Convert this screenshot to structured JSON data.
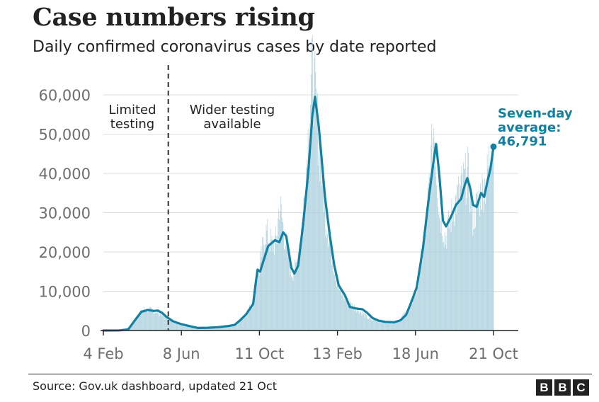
{
  "title": "Case numbers rising",
  "subtitle": "Daily confirmed coronavirus cases by date reported",
  "source": "Source: Gov.uk dashboard, updated 21 Oct",
  "logo": {
    "letters": [
      "B",
      "B",
      "C"
    ]
  },
  "annotations": {
    "limited_testing": [
      "Limited",
      "testing"
    ],
    "wider_testing": [
      "Wider testing",
      "available"
    ],
    "latest_label": [
      "Seven-day",
      "average:",
      "46,791"
    ]
  },
  "colors": {
    "line": "#1380a1",
    "bars": "#a8cedc",
    "grid": "#dcdcdc",
    "axis": "#222222",
    "tick_text": "#6e6e6e",
    "accent_text": "#1380a1"
  },
  "chart_data": {
    "type": "line",
    "title": "Case numbers rising",
    "subtitle": "Daily confirmed coronavirus cases by date reported",
    "xlabel": "",
    "ylabel": "",
    "x_ticks": [
      "4 Feb",
      "8 Jun",
      "11 Oct",
      "13 Feb",
      "18 Jun",
      "21 Oct"
    ],
    "y_ticks": [
      0,
      10000,
      20000,
      30000,
      40000,
      50000,
      60000
    ],
    "y_tick_labels": [
      "0",
      "10,000",
      "20,000",
      "30,000",
      "40,000",
      "50,000",
      "60,000"
    ],
    "ylim": [
      0,
      65000
    ],
    "xlim": [
      "2020-02-04",
      "2021-10-21"
    ],
    "grid": true,
    "testing_change_date": "2020-05-18",
    "series": [
      {
        "name": "Seven-day average",
        "style": "line",
        "points": [
          [
            "2020-02-04",
            0
          ],
          [
            "2020-03-01",
            30
          ],
          [
            "2020-03-15",
            300
          ],
          [
            "2020-03-25",
            2500
          ],
          [
            "2020-04-05",
            4800
          ],
          [
            "2020-04-15",
            5200
          ],
          [
            "2020-04-25",
            5000
          ],
          [
            "2020-05-01",
            5100
          ],
          [
            "2020-05-08",
            4500
          ],
          [
            "2020-05-15",
            3500
          ],
          [
            "2020-05-25",
            2400
          ],
          [
            "2020-06-08",
            1600
          ],
          [
            "2020-06-22",
            1100
          ],
          [
            "2020-07-05",
            650
          ],
          [
            "2020-07-20",
            700
          ],
          [
            "2020-08-05",
            850
          ],
          [
            "2020-08-20",
            1100
          ],
          [
            "2020-09-01",
            1400
          ],
          [
            "2020-09-10",
            2600
          ],
          [
            "2020-09-20",
            4200
          ],
          [
            "2020-10-01",
            6800
          ],
          [
            "2020-10-05",
            12000
          ],
          [
            "2020-10-08",
            15500
          ],
          [
            "2020-10-12",
            15000
          ],
          [
            "2020-10-18",
            18000
          ],
          [
            "2020-10-25",
            21500
          ],
          [
            "2020-11-05",
            23000
          ],
          [
            "2020-11-12",
            22500
          ],
          [
            "2020-11-18",
            25000
          ],
          [
            "2020-11-23",
            24000
          ],
          [
            "2020-12-01",
            16000
          ],
          [
            "2020-12-06",
            14500
          ],
          [
            "2020-12-12",
            16500
          ],
          [
            "2020-12-20",
            27000
          ],
          [
            "2020-12-28",
            40000
          ],
          [
            "2021-01-04",
            55000
          ],
          [
            "2021-01-08",
            59500
          ],
          [
            "2021-01-14",
            52000
          ],
          [
            "2021-01-24",
            34000
          ],
          [
            "2021-02-01",
            24000
          ],
          [
            "2021-02-08",
            16500
          ],
          [
            "2021-02-15",
            11500
          ],
          [
            "2021-02-25",
            9000
          ],
          [
            "2021-03-05",
            6000
          ],
          [
            "2021-03-15",
            5600
          ],
          [
            "2021-03-25",
            5400
          ],
          [
            "2021-04-01",
            4600
          ],
          [
            "2021-04-10",
            3200
          ],
          [
            "2021-04-20",
            2500
          ],
          [
            "2021-05-01",
            2200
          ],
          [
            "2021-05-15",
            2100
          ],
          [
            "2021-05-25",
            2600
          ],
          [
            "2021-06-03",
            4000
          ],
          [
            "2021-06-12",
            7500
          ],
          [
            "2021-06-20",
            11000
          ],
          [
            "2021-06-30",
            21000
          ],
          [
            "2021-07-08",
            32000
          ],
          [
            "2021-07-16",
            42000
          ],
          [
            "2021-07-21",
            47500
          ],
          [
            "2021-07-26",
            40000
          ],
          [
            "2021-08-01",
            28000
          ],
          [
            "2021-08-06",
            26500
          ],
          [
            "2021-08-14",
            29000
          ],
          [
            "2021-08-22",
            32000
          ],
          [
            "2021-08-30",
            33500
          ],
          [
            "2021-09-05",
            37000
          ],
          [
            "2021-09-09",
            38800
          ],
          [
            "2021-09-14",
            36000
          ],
          [
            "2021-09-18",
            32000
          ],
          [
            "2021-09-24",
            31500
          ],
          [
            "2021-10-01",
            35000
          ],
          [
            "2021-10-06",
            34000
          ],
          [
            "2021-10-12",
            38500
          ],
          [
            "2021-10-16",
            41000
          ],
          [
            "2021-10-21",
            46791
          ]
        ]
      },
      {
        "name": "Daily confirmed cases",
        "style": "bars",
        "points": [
          [
            "2020-02-04",
            0
          ],
          [
            "2020-03-10",
            150
          ],
          [
            "2020-03-20",
            1500
          ],
          [
            "2020-04-01",
            4500
          ],
          [
            "2020-04-10",
            5500
          ],
          [
            "2020-04-24",
            5200
          ],
          [
            "2020-05-08",
            4300
          ],
          [
            "2020-05-20",
            3000
          ],
          [
            "2020-06-08",
            1400
          ],
          [
            "2020-07-05",
            600
          ],
          [
            "2020-08-05",
            950
          ],
          [
            "2020-09-01",
            1500
          ],
          [
            "2020-09-20",
            4500
          ],
          [
            "2020-10-01",
            7500
          ],
          [
            "2020-10-05",
            13500
          ],
          [
            "2020-10-10",
            15000
          ],
          [
            "2020-10-21",
            26000
          ],
          [
            "2020-11-01",
            22000
          ],
          [
            "2020-11-08",
            24000
          ],
          [
            "2020-11-12",
            33500
          ],
          [
            "2020-11-20",
            25000
          ],
          [
            "2020-12-01",
            15000
          ],
          [
            "2020-12-08",
            16000
          ],
          [
            "2020-12-20",
            30000
          ],
          [
            "2020-12-29",
            53000
          ],
          [
            "2021-01-04",
            68000
          ],
          [
            "2021-01-08",
            62000
          ],
          [
            "2021-01-15",
            48000
          ],
          [
            "2021-01-25",
            30000
          ],
          [
            "2021-02-05",
            19000
          ],
          [
            "2021-02-15",
            11000
          ],
          [
            "2021-03-01",
            7500
          ],
          [
            "2021-03-20",
            5200
          ],
          [
            "2021-04-05",
            3000
          ],
          [
            "2021-05-01",
            2200
          ],
          [
            "2021-05-20",
            2300
          ],
          [
            "2021-06-05",
            5000
          ],
          [
            "2021-06-20",
            10500
          ],
          [
            "2021-07-05",
            27000
          ],
          [
            "2021-07-15",
            48000
          ],
          [
            "2021-07-17",
            54000
          ],
          [
            "2021-07-26",
            32000
          ],
          [
            "2021-08-05",
            24000
          ],
          [
            "2021-08-20",
            33000
          ],
          [
            "2021-09-01",
            38000
          ],
          [
            "2021-09-10",
            41000
          ],
          [
            "2021-09-18",
            29000
          ],
          [
            "2021-10-01",
            36000
          ],
          [
            "2021-10-10",
            39000
          ],
          [
            "2021-10-18",
            49000
          ],
          [
            "2021-10-21",
            52000
          ]
        ]
      }
    ]
  }
}
